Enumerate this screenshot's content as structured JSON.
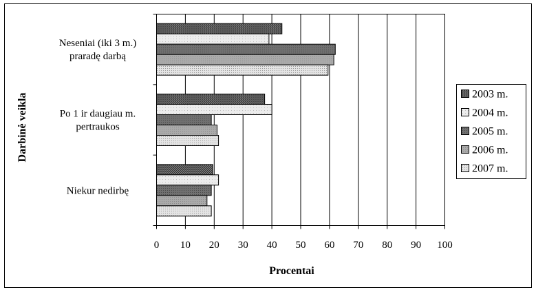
{
  "chart_data": {
    "type": "bar",
    "orientation": "horizontal",
    "title": "",
    "xlabel": "Procentai",
    "ylabel": "Darbinė veikla",
    "xlim": [
      0,
      100
    ],
    "x_ticks": [
      "0",
      "10",
      "20",
      "30",
      "40",
      "50",
      "60",
      "70",
      "80",
      "90",
      "100"
    ],
    "grid": "vertical major gridlines",
    "legend_position": "right",
    "categories": [
      [
        "Neseniai (iki 3 m.)",
        "praradę darbą"
      ],
      [
        "Po 1 ir daugiau m.",
        "pertraukos"
      ],
      [
        "Niekur nedirbę"
      ]
    ],
    "series": [
      {
        "name": "2003 m.",
        "pattern": "dense-cross",
        "color": "#555555",
        "values": [
          43.5,
          37.5,
          19.5
        ]
      },
      {
        "name": "2004 m.",
        "pattern": "light",
        "color": "#e6e6e6",
        "values": [
          39.0,
          40.0,
          21.5
        ]
      },
      {
        "name": "2005 m.",
        "pattern": "dark",
        "color": "#6e6e6e",
        "values": [
          62.0,
          19.0,
          19.0
        ]
      },
      {
        "name": "2006 m.",
        "pattern": "medium",
        "color": "#a6a6a6",
        "values": [
          61.5,
          21.0,
          17.5
        ]
      },
      {
        "name": "2007 m.",
        "pattern": "dotted",
        "color": "#dddddd",
        "values": [
          59.5,
          21.5,
          19.0
        ]
      }
    ]
  }
}
